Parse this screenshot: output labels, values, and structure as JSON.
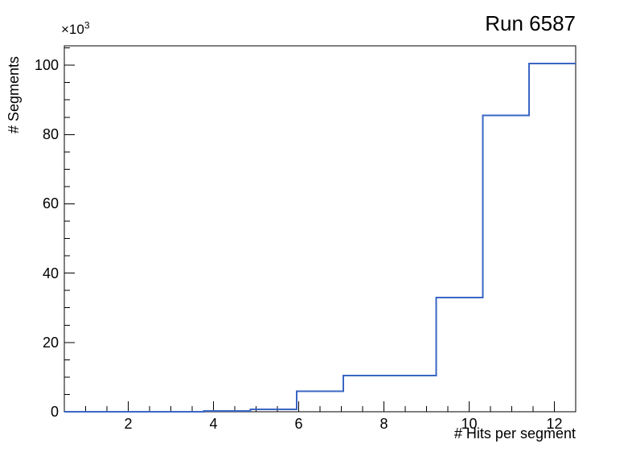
{
  "title": "Run 6587",
  "axes": {
    "x_title": "# Hits per segment",
    "y_title": "# Segments",
    "y_axis_multiplier_base": "×10",
    "y_axis_multiplier_exponent": "3",
    "x_tick_labels": [
      "2",
      "4",
      "6",
      "8",
      "10",
      "12"
    ],
    "y_tick_labels": [
      "0",
      "20",
      "40",
      "60",
      "80",
      "100"
    ]
  },
  "chart_data": {
    "type": "bar",
    "subtype": "step-histogram",
    "title": "Run 6587",
    "xlabel": "# Hits per segment",
    "ylabel": "# Segments",
    "y_unit_multiplier": 1000,
    "bin_edges": [
      0.5,
      1.591,
      2.682,
      3.773,
      4.864,
      5.955,
      7.045,
      8.136,
      9.227,
      10.318,
      11.409,
      12.5
    ],
    "counts": [
      10,
      20,
      50,
      250,
      700,
      5900,
      10400,
      10400,
      33000,
      85500,
      100500
    ],
    "xlim": [
      0.5,
      12.5
    ],
    "ylim": [
      0,
      105600
    ],
    "x_major_ticks": [
      2,
      4,
      6,
      8,
      10,
      12
    ],
    "x_minor_tick_step": 0.5,
    "y_major_ticks": [
      0,
      20000,
      40000,
      60000,
      80000,
      100000
    ],
    "y_minor_tick_step": 5000,
    "grid": false,
    "legend": null,
    "line_color": "#3a66c4",
    "frame_color": "#000000",
    "background": "#ffffff"
  }
}
